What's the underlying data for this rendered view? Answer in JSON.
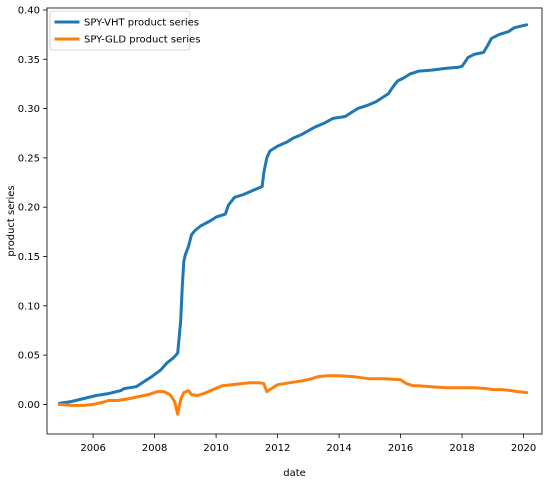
{
  "chart_data": {
    "type": "line",
    "title": "",
    "xlabel": "date",
    "ylabel": "product series",
    "xlim": [
      2004.5,
      2020.6
    ],
    "ylim": [
      -0.03,
      0.402
    ],
    "x_ticks": [
      2006,
      2008,
      2010,
      2012,
      2014,
      2016,
      2018,
      2020
    ],
    "y_ticks": [
      0.0,
      0.05,
      0.1,
      0.15,
      0.2,
      0.25,
      0.3,
      0.35,
      0.4
    ],
    "y_tick_labels": [
      "0.00",
      "0.05",
      "0.10",
      "0.15",
      "0.20",
      "0.25",
      "0.30",
      "0.35",
      "0.40"
    ],
    "grid": false,
    "legend_position": "top-left",
    "series": [
      {
        "name": "SPY-VHT product series",
        "color": "#1f77b4",
        "x": [
          2004.9,
          2005.3,
          2005.7,
          2006.1,
          2006.5,
          2006.9,
          2007.0,
          2007.4,
          2007.6,
          2007.9,
          2008.2,
          2008.4,
          2008.6,
          2008.75,
          2008.85,
          2008.9,
          2008.95,
          2009.0,
          2009.1,
          2009.2,
          2009.3,
          2009.5,
          2009.8,
          2010.0,
          2010.3,
          2010.4,
          2010.6,
          2010.9,
          2011.2,
          2011.5,
          2011.55,
          2011.65,
          2011.75,
          2012.0,
          2012.3,
          2012.5,
          2012.8,
          2013.2,
          2013.5,
          2013.8,
          2014.2,
          2014.6,
          2014.9,
          2015.2,
          2015.6,
          2015.75,
          2015.9,
          2016.1,
          2016.3,
          2016.6,
          2017.0,
          2017.5,
          2017.9,
          2018.0,
          2018.2,
          2018.4,
          2018.7,
          2018.85,
          2018.95,
          2019.2,
          2019.5,
          2019.7,
          2020.1
        ],
        "y": [
          0.001,
          0.003,
          0.006,
          0.009,
          0.011,
          0.014,
          0.016,
          0.018,
          0.022,
          0.028,
          0.035,
          0.042,
          0.047,
          0.052,
          0.085,
          0.12,
          0.145,
          0.152,
          0.16,
          0.172,
          0.176,
          0.181,
          0.186,
          0.19,
          0.193,
          0.202,
          0.21,
          0.213,
          0.217,
          0.221,
          0.235,
          0.25,
          0.257,
          0.262,
          0.266,
          0.27,
          0.274,
          0.281,
          0.285,
          0.29,
          0.292,
          0.3,
          0.303,
          0.307,
          0.315,
          0.322,
          0.328,
          0.331,
          0.335,
          0.338,
          0.339,
          0.341,
          0.342,
          0.343,
          0.352,
          0.355,
          0.357,
          0.365,
          0.371,
          0.375,
          0.378,
          0.382,
          0.385
        ]
      },
      {
        "name": "SPY-GLD product series",
        "color": "#ff7f0e",
        "x": [
          2004.9,
          2005.3,
          2005.7,
          2006.0,
          2006.3,
          2006.5,
          2006.8,
          2007.2,
          2007.5,
          2007.8,
          2008.1,
          2008.3,
          2008.5,
          2008.65,
          2008.75,
          2008.85,
          2008.95,
          2009.1,
          2009.2,
          2009.4,
          2009.6,
          2009.9,
          2010.2,
          2010.5,
          2010.8,
          2011.1,
          2011.4,
          2011.55,
          2011.65,
          2011.8,
          2012.0,
          2012.4,
          2012.8,
          2013.1,
          2013.3,
          2013.6,
          2014.0,
          2014.5,
          2015.0,
          2015.5,
          2016.0,
          2016.2,
          2016.4,
          2016.6,
          2017.0,
          2017.5,
          2018.0,
          2018.4,
          2018.8,
          2019.0,
          2019.3,
          2019.6,
          2019.8,
          2020.1
        ],
        "y": [
          0.0,
          -0.001,
          -0.001,
          0.0,
          0.002,
          0.004,
          0.004,
          0.006,
          0.008,
          0.01,
          0.013,
          0.013,
          0.01,
          0.003,
          -0.01,
          0.005,
          0.012,
          0.014,
          0.01,
          0.009,
          0.011,
          0.015,
          0.019,
          0.02,
          0.021,
          0.022,
          0.022,
          0.021,
          0.013,
          0.016,
          0.02,
          0.022,
          0.024,
          0.026,
          0.028,
          0.029,
          0.029,
          0.028,
          0.026,
          0.026,
          0.025,
          0.021,
          0.019,
          0.019,
          0.018,
          0.017,
          0.017,
          0.017,
          0.016,
          0.015,
          0.015,
          0.014,
          0.013,
          0.012
        ]
      }
    ]
  }
}
